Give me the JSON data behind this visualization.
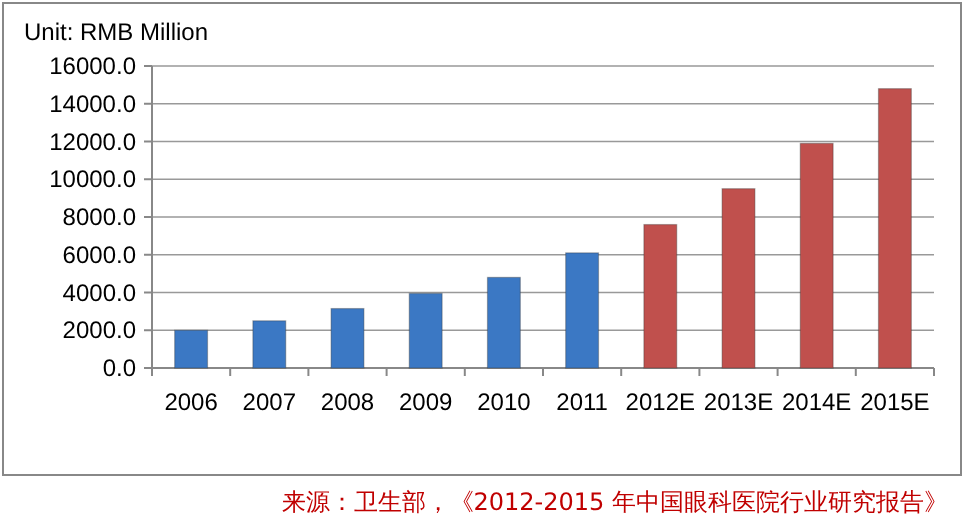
{
  "chart_data": {
    "type": "bar",
    "ylabel": "Unit: RMB Million",
    "categories": [
      "2006",
      "2007",
      "2008",
      "2009",
      "2010",
      "2011",
      "2012E",
      "2013E",
      "2014E",
      "2015E"
    ],
    "values": [
      2000,
      2500,
      3150,
      3950,
      4800,
      6100,
      7600,
      9500,
      11900,
      14800
    ],
    "colors": [
      "#3b78c4",
      "#3b78c4",
      "#3b78c4",
      "#3b78c4",
      "#3b78c4",
      "#3b78c4",
      "#c0504d",
      "#c0504d",
      "#c0504d",
      "#c0504d"
    ],
    "ylim": [
      0,
      16000
    ],
    "yticks": [
      {
        "value": 0,
        "label": "0.0"
      },
      {
        "value": 2000,
        "label": "2000.0"
      },
      {
        "value": 4000,
        "label": "4000.0"
      },
      {
        "value": 6000,
        "label": "6000.0"
      },
      {
        "value": 8000,
        "label": "8000.0"
      },
      {
        "value": 10000,
        "label": "10000.0"
      },
      {
        "value": 12000,
        "label": "12000.0"
      },
      {
        "value": 14000,
        "label": "14000.0"
      },
      {
        "value": 16000,
        "label": "16000.0"
      }
    ],
    "grid": "y",
    "annotations": [
      "来源：卫生部，《2012-2015 年中国眼科医院行业研究报告》"
    ]
  }
}
